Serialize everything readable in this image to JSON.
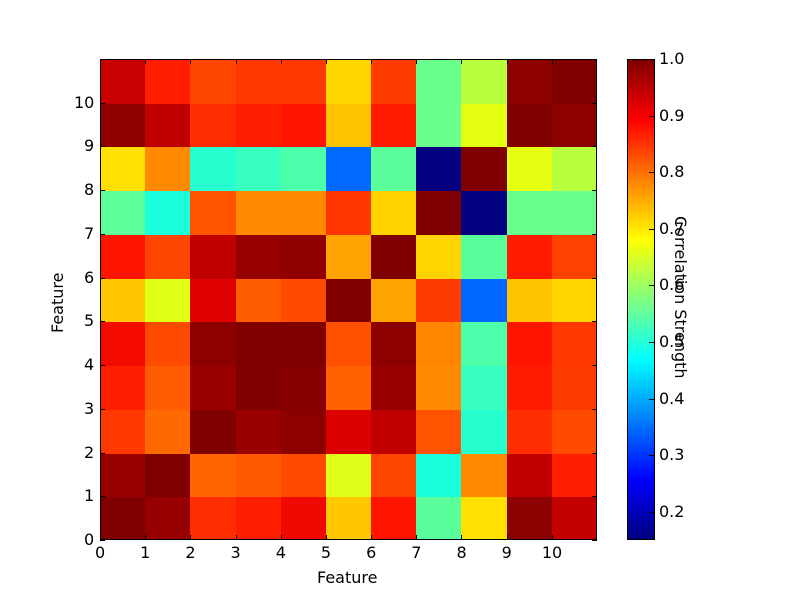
{
  "chart_data": {
    "type": "heatmap",
    "title": "",
    "xlabel": "Feature",
    "ylabel": "Feature",
    "colorbar_label": "Correlation Strength",
    "colormap": "jet",
    "vmin": 0.15,
    "vmax": 1.0,
    "grid": false,
    "legend_position": "right (colorbar)",
    "x_ticks": [
      "0",
      "1",
      "2",
      "3",
      "4",
      "5",
      "6",
      "7",
      "8",
      "9",
      "10"
    ],
    "y_ticks": [
      "0",
      "1",
      "2",
      "3",
      "4",
      "5",
      "6",
      "7",
      "8",
      "9",
      "10"
    ],
    "colorbar_ticks": [
      "0.2",
      "0.3",
      "0.4",
      "0.5",
      "0.6",
      "0.7",
      "0.8",
      "0.9",
      "1.0"
    ],
    "xlim": [
      0,
      11
    ],
    "ylim": [
      0,
      11
    ],
    "row_order": "row index 0 = bottom row (y from 0 to 1)",
    "values": [
      [
        1.0,
        0.97,
        0.89,
        0.9,
        0.92,
        0.72,
        0.91,
        0.55,
        0.7,
        0.98,
        0.95
      ],
      [
        0.97,
        1.0,
        0.84,
        0.85,
        0.87,
        0.64,
        0.86,
        0.48,
        0.8,
        0.95,
        0.9
      ],
      [
        0.88,
        0.83,
        1.0,
        0.97,
        0.98,
        0.94,
        0.95,
        0.85,
        0.5,
        0.89,
        0.87
      ],
      [
        0.9,
        0.84,
        0.97,
        1.0,
        0.99,
        0.84,
        0.97,
        0.8,
        0.51,
        0.91,
        0.88
      ],
      [
        0.92,
        0.87,
        0.98,
        1.0,
        1.0,
        0.86,
        0.98,
        0.81,
        0.53,
        0.91,
        0.88
      ],
      [
        0.72,
        0.64,
        0.93,
        0.84,
        0.86,
        1.0,
        0.77,
        0.88,
        0.33,
        0.73,
        0.7
      ],
      [
        0.91,
        0.86,
        0.95,
        0.97,
        0.98,
        0.77,
        1.0,
        0.71,
        0.55,
        0.91,
        0.87
      ],
      [
        0.55,
        0.47,
        0.85,
        0.8,
        0.8,
        0.88,
        0.71,
        1.0,
        0.16,
        0.57,
        0.57
      ],
      [
        0.7,
        0.8,
        0.5,
        0.51,
        0.53,
        0.33,
        0.55,
        0.16,
        1.0,
        0.66,
        0.61
      ],
      [
        0.98,
        0.95,
        0.89,
        0.9,
        0.91,
        0.73,
        0.91,
        0.57,
        0.66,
        1.0,
        0.98
      ],
      [
        0.96,
        0.9,
        0.86,
        0.88,
        0.88,
        0.7,
        0.88,
        0.57,
        0.61,
        0.98,
        1.0
      ]
    ],
    "cell_colors": [
      [
        "#800000",
        "#960000",
        "#ff2d00",
        "#ff1e00",
        "#f10800",
        "#ffc800",
        "#ff1400",
        "#5aff9c",
        "#ffe000",
        "#8b0000",
        "#c40000"
      ],
      [
        "#9a0000",
        "#800000",
        "#ff6400",
        "#ff5900",
        "#ff4b00",
        "#dfff18",
        "#ff4600",
        "#19ffdd",
        "#ff8a00",
        "#c00000",
        "#ff1e00"
      ],
      [
        "#ff3700",
        "#ff6a00",
        "#800000",
        "#9a0000",
        "#8d0000",
        "#dc0000",
        "#c00000",
        "#ff5300",
        "#28ffce",
        "#ff2d00",
        "#ff4b00"
      ],
      [
        "#ff1e00",
        "#ff5b00",
        "#9a0000",
        "#800000",
        "#860000",
        "#ff6000",
        "#960000",
        "#ff8a00",
        "#36ffc0",
        "#ff1a00",
        "#ff3c00"
      ],
      [
        "#f50a00",
        "#ff4b00",
        "#8d0000",
        "#800000",
        "#800000",
        "#ff5000",
        "#8d0000",
        "#ff8500",
        "#4dffa9",
        "#ff1400",
        "#ff3700"
      ],
      [
        "#ffc800",
        "#e0ff17",
        "#df0000",
        "#ff5e00",
        "#ff4b00",
        "#800000",
        "#ffa300",
        "#ff3c00",
        "#0068ff",
        "#ffc300",
        "#ffd600"
      ],
      [
        "#ff1400",
        "#ff4600",
        "#c00000",
        "#960000",
        "#900000",
        "#ffa300",
        "#800000",
        "#ffd400",
        "#5aff9c",
        "#ff1a00",
        "#ff4100"
      ],
      [
        "#5cff9a",
        "#1affdc",
        "#ff5300",
        "#ff8a00",
        "#ff8a00",
        "#ff3500",
        "#ffd200",
        "#800000",
        "#000080",
        "#69ff8d",
        "#69ff8d"
      ],
      [
        "#ffe000",
        "#ff8a00",
        "#28ffce",
        "#36ffc0",
        "#4dffa9",
        "#006aff",
        "#5aff9c",
        "#000080",
        "#800000",
        "#e4ff12",
        "#b8ff3e"
      ],
      [
        "#8f0000",
        "#c00000",
        "#ff2d00",
        "#ff1e00",
        "#ff1400",
        "#ffc300",
        "#ff1a00",
        "#69ff8d",
        "#e4ff12",
        "#800000",
        "#8d0000"
      ],
      [
        "#c80000",
        "#ff1e00",
        "#ff4600",
        "#ff3700",
        "#ff3700",
        "#ffd600",
        "#ff3c00",
        "#69ff8d",
        "#b8ff3e",
        "#8d0000",
        "#800000"
      ]
    ],
    "colorbar_gradient": [
      "#000080",
      "#0000ff",
      "#0080ff",
      "#00ffff",
      "#80ff80",
      "#ffff00",
      "#ff8000",
      "#ff0000",
      "#800000"
    ]
  }
}
